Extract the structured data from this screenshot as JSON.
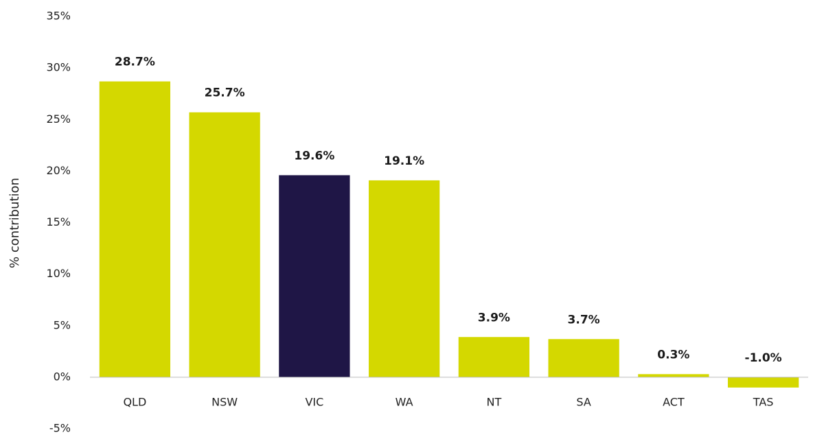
{
  "chart_data": {
    "type": "bar",
    "y_label": "% contribution",
    "categories": [
      "QLD",
      "NSW",
      "VIC",
      "WA",
      "NT",
      "SA",
      "ACT",
      "TAS"
    ],
    "values": [
      28.7,
      25.7,
      19.6,
      19.1,
      3.9,
      3.7,
      0.3,
      -1.0
    ],
    "value_labels": [
      "28.7%",
      "25.7%",
      "19.6%",
      "19.1%",
      "3.9%",
      "3.7%",
      "0.3%",
      "-1.0%"
    ],
    "colors": [
      "#d4d800",
      "#d4d800",
      "#1f1646",
      "#d4d800",
      "#d4d800",
      "#d4d800",
      "#d4d800",
      "#d4d800"
    ],
    "ylim": [
      -5,
      35
    ],
    "yticks": [
      {
        "value": -5,
        "label": "-5%"
      },
      {
        "value": 0,
        "label": "0%"
      },
      {
        "value": 5,
        "label": "5%"
      },
      {
        "value": 10,
        "label": "10%"
      },
      {
        "value": 15,
        "label": "15%"
      },
      {
        "value": 20,
        "label": "20%"
      },
      {
        "value": 25,
        "label": "25%"
      },
      {
        "value": 30,
        "label": "30%"
      },
      {
        "value": 35,
        "label": "35%"
      }
    ]
  }
}
